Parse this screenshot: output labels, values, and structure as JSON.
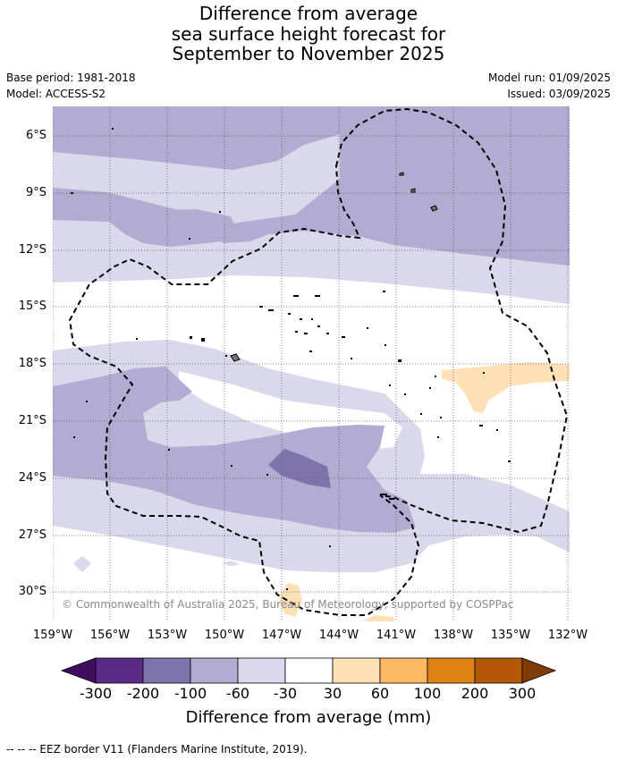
{
  "title": [
    "Difference from average",
    "sea surface height forecast for",
    "September to November 2025"
  ],
  "meta_left": [
    "Base period: 1981-2018",
    "Model: ACCESS-S2"
  ],
  "meta_right": [
    "Model run: 01/09/2025",
    "Issued: 03/09/2025"
  ],
  "copyright": "© Commonwealth of Australia 2025, Bureau of Meteorology, supported by COSPPac",
  "lat_labels": [
    "6°S",
    "9°S",
    "12°S",
    "15°S",
    "18°S",
    "21°S",
    "24°S",
    "27°S",
    "30°S"
  ],
  "lon_labels": [
    "159°W",
    "156°W",
    "153°W",
    "150°W",
    "147°W",
    "144°W",
    "141°W",
    "138°W",
    "135°W",
    "132°W"
  ],
  "colorbar": {
    "title": "Difference from average (mm)",
    "tick_labels": [
      "-300",
      "-200",
      "-100",
      "-60",
      "-30",
      "30",
      "60",
      "100",
      "200",
      "300"
    ],
    "under_color": "#3f0f5e",
    "over_color": "#7f3b08",
    "bin_colors": [
      "#5a2a87",
      "#8073ac",
      "#b2abd2",
      "#d8daeb",
      "#ffffff",
      "#fee0b6",
      "#fdb863",
      "#e08214",
      "#b35806"
    ]
  },
  "footnote": "-- -- -- EEZ border V11 (Flanders Marine Institute, 2019).",
  "colors": {
    "level_m60": "#b2abd2",
    "level_m30": "#d8daeb",
    "level_m100": "#8073ac",
    "level_p30": "#fee0b6"
  }
}
